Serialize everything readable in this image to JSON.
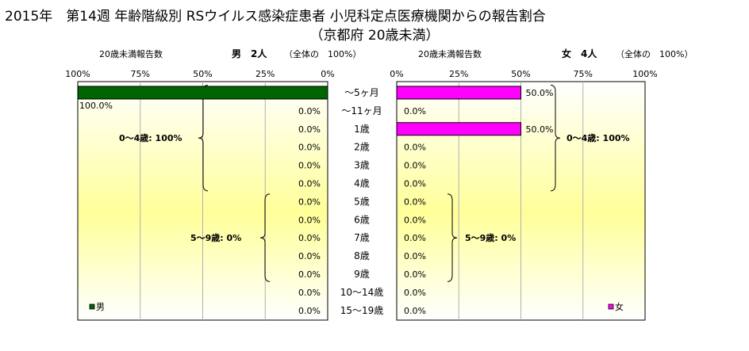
{
  "title": "2015年　第14週 年齢階級別 RSウイルス感染症患者 小児科定点医療機関からの報告割合",
  "subtitle": "（京都府 20歳未満）",
  "chart_data": {
    "type": "bar",
    "categories": [
      "～5ヶ月",
      "～11ヶ月",
      "1歳",
      "2歳",
      "3歳",
      "4歳",
      "5歳",
      "6歳",
      "7歳",
      "8歳",
      "9歳",
      "10～14歳",
      "15～19歳"
    ],
    "panels": [
      {
        "side": "left",
        "count_label": "20歳未満報告数",
        "header": "男　2人",
        "total": "（全体の　100%）",
        "ticks": [
          "100%",
          "75%",
          "50%",
          "25%",
          "0%"
        ],
        "legend": "男",
        "color": "#006400",
        "series": [
          {
            "name": "男",
            "values": [
              100,
              0,
              0,
              0,
              0,
              0,
              0,
              0,
              0,
              0,
              0,
              0,
              0
            ]
          }
        ],
        "value_labels": [
          "100.0%",
          "0.0%",
          "0.0%",
          "0.0%",
          "0.0%",
          "0.0%",
          "0.0%",
          "0.0%",
          "0.0%",
          "0.0%",
          "0.0%",
          "0.0%",
          "0.0%"
        ],
        "brackets": [
          {
            "label": "0～4歳: 100%",
            "from": 0,
            "to": 5
          },
          {
            "label": "5～9歳: 0%",
            "from": 6,
            "to": 10
          }
        ]
      },
      {
        "side": "right",
        "count_label": "20歳未満報告数",
        "header": "女　4人",
        "total": "（全体の　100%）",
        "ticks": [
          "0%",
          "25%",
          "50%",
          "75%",
          "100%"
        ],
        "legend": "女",
        "color": "#ff00ff",
        "series": [
          {
            "name": "女",
            "values": [
              50,
              0,
              50,
              0,
              0,
              0,
              0,
              0,
              0,
              0,
              0,
              0,
              0
            ]
          }
        ],
        "value_labels": [
          "50.0%",
          "0.0%",
          "50.0%",
          "0.0%",
          "0.0%",
          "0.0%",
          "0.0%",
          "0.0%",
          "0.0%",
          "0.0%",
          "0.0%",
          "0.0%",
          "0.0%"
        ],
        "brackets": [
          {
            "label": "0～4歳: 100%",
            "from": 0,
            "to": 5
          },
          {
            "label": "5～9歳: 0%",
            "from": 6,
            "to": 10
          }
        ]
      }
    ],
    "xlim": [
      0,
      100
    ],
    "grid": true
  }
}
